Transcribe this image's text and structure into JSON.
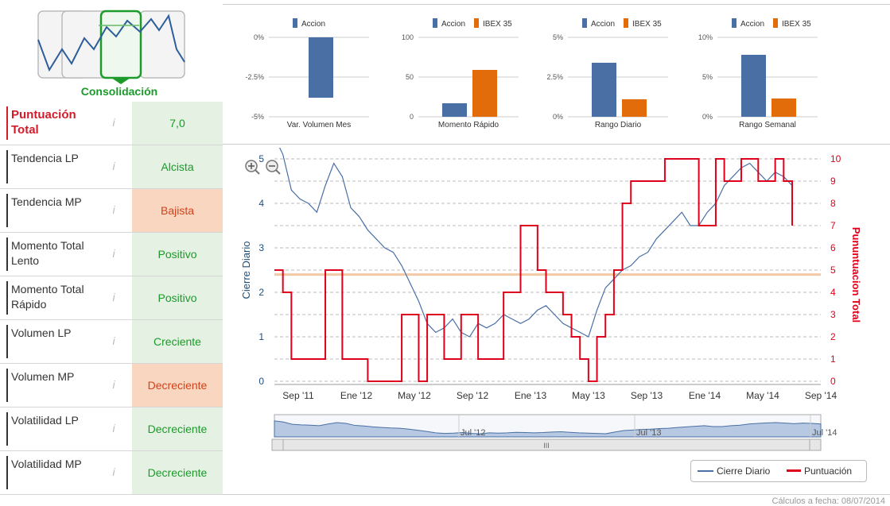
{
  "phase": {
    "label": "Consolidación"
  },
  "indicators": [
    {
      "name": "Puntuación Total",
      "value": "7,0",
      "tone": "green"
    },
    {
      "name": "Tendencia LP",
      "value": "Alcista",
      "tone": "green"
    },
    {
      "name": "Tendencia MP",
      "value": "Bajista",
      "tone": "orange"
    },
    {
      "name": "Momento Total Lento",
      "value": "Positivo",
      "tone": "green"
    },
    {
      "name": "Momento Total Rápido",
      "value": "Positivo",
      "tone": "green"
    },
    {
      "name": "Volumen LP",
      "value": "Creciente",
      "tone": "green"
    },
    {
      "name": "Volumen MP",
      "value": "Decreciente",
      "tone": "orange"
    },
    {
      "name": "Volatilidad LP",
      "value": "Decreciente",
      "tone": "green"
    },
    {
      "name": "Volatilidad MP",
      "value": "Decreciente",
      "tone": "green"
    }
  ],
  "info_glyph": "i",
  "colors": {
    "accion": "#4a6fa5",
    "ibex": "#e36c0a",
    "green": "#1c9a2a",
    "red": "#e0001b",
    "orange_line": "#f3c9a5"
  },
  "chart_data": [
    {
      "type": "bar",
      "title": "Var. Volumen Mes",
      "series": [
        {
          "name": "Accion",
          "values": [
            -3.8
          ]
        }
      ],
      "yticks": [
        "0%",
        "-2.5%",
        "-5%"
      ],
      "ylim": [
        -5,
        0
      ]
    },
    {
      "type": "bar",
      "title": "Momento Rápido",
      "series": [
        {
          "name": "Accion",
          "values": [
            17
          ]
        },
        {
          "name": "IBEX 35",
          "values": [
            59
          ]
        }
      ],
      "yticks": [
        "100",
        "50",
        "0"
      ],
      "ylim": [
        0,
        100
      ]
    },
    {
      "type": "bar",
      "title": "Rango Diario",
      "series": [
        {
          "name": "Accion",
          "values": [
            3.4
          ]
        },
        {
          "name": "IBEX 35",
          "values": [
            1.1
          ]
        }
      ],
      "yticks": [
        "5%",
        "2.5%",
        "0%"
      ],
      "ylim": [
        0,
        5
      ]
    },
    {
      "type": "bar",
      "title": "Rango Semanal",
      "series": [
        {
          "name": "Accion",
          "values": [
            7.8
          ]
        },
        {
          "name": "IBEX 35",
          "values": [
            2.3
          ]
        }
      ],
      "yticks": [
        "10%",
        "5%",
        "0%"
      ],
      "ylim": [
        0,
        10
      ]
    },
    {
      "type": "line",
      "xticks": [
        "Sep '11",
        "Ene '12",
        "May '12",
        "Sep '12",
        "Ene '13",
        "May '13",
        "Sep '13",
        "Ene '14",
        "May '14",
        "Sep '14"
      ],
      "ylabel": "Cierre Diario",
      "y2label": "Pununtuacion Total",
      "ylim": [
        0,
        5
      ],
      "y2lim": [
        0,
        10
      ],
      "yticks": [
        "0",
        "1",
        "2",
        "3",
        "4",
        "5"
      ],
      "y2ticks": [
        "0",
        "1",
        "2",
        "3",
        "4",
        "5",
        "6",
        "7",
        "8",
        "9",
        "10"
      ],
      "reference_line": 4.8,
      "series": [
        {
          "name": "Cierre Diario",
          "axis": "left",
          "values": [
            5.5,
            5.1,
            4.3,
            4.1,
            4.0,
            3.8,
            4.4,
            4.9,
            4.6,
            3.9,
            3.7,
            3.4,
            3.2,
            3.0,
            2.9,
            2.6,
            2.2,
            1.8,
            1.3,
            1.1,
            1.2,
            1.4,
            1.1,
            1.0,
            1.3,
            1.2,
            1.3,
            1.5,
            1.4,
            1.3,
            1.4,
            1.6,
            1.7,
            1.5,
            1.3,
            1.2,
            1.1,
            1.0,
            1.6,
            2.1,
            2.3,
            2.5,
            2.6,
            2.8,
            2.9,
            3.2,
            3.4,
            3.6,
            3.8,
            3.5,
            3.5,
            3.8,
            4.0,
            4.4,
            4.6,
            4.8,
            4.9,
            4.7,
            4.5,
            4.7,
            4.6,
            4.4
          ]
        },
        {
          "name": "Puntuación",
          "axis": "right",
          "values": [
            5,
            4,
            1,
            1,
            1,
            1,
            5,
            5,
            1,
            1,
            1,
            0,
            0,
            0,
            0,
            3,
            3,
            0,
            3,
            3,
            1,
            1,
            3,
            3,
            1,
            1,
            1,
            4,
            4,
            7,
            7,
            5,
            4,
            4,
            3,
            2,
            1,
            0,
            2,
            3,
            5,
            8,
            9,
            9,
            9,
            9,
            10,
            10,
            10,
            10,
            7,
            7,
            10,
            9,
            9,
            10,
            10,
            9,
            9,
            10,
            9,
            7
          ]
        }
      ]
    }
  ],
  "navigator": {
    "labels": [
      "Jul '12",
      "Jul '13",
      "Jul '14"
    ],
    "scroll_glyph": "III"
  },
  "legend": {
    "items": [
      "Cierre Diario",
      "Puntuación"
    ]
  },
  "footer": "Cálculos a fecha: 08/07/2014"
}
